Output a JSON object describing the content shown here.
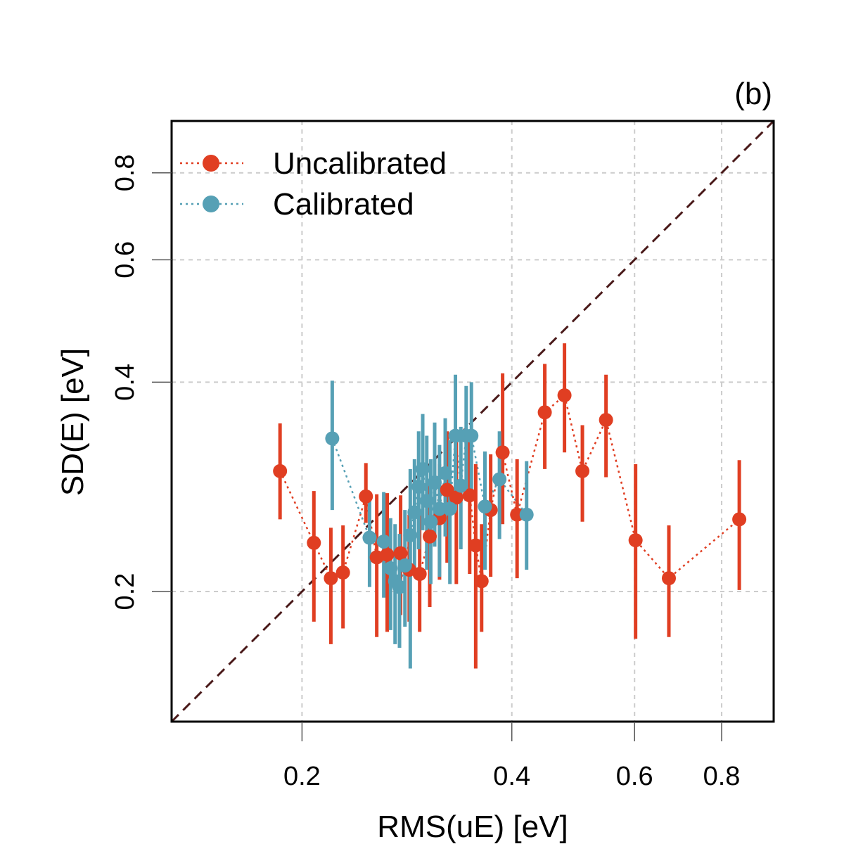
{
  "chart_data": {
    "type": "scatter",
    "panel_label": "(b)",
    "xlabel": "RMS(uE) [eV]",
    "ylabel": "SD(E) [eV]",
    "x_scale": "log",
    "y_scale": "log",
    "xlim": [
      0.13,
      0.95
    ],
    "ylim": [
      0.13,
      0.95
    ],
    "x_ticks": [
      0.2,
      0.4,
      0.6,
      0.8
    ],
    "x_tick_labels": [
      "0.2",
      "0.4",
      "0.6",
      "0.8"
    ],
    "y_ticks": [
      0.2,
      0.4,
      0.6,
      0.8
    ],
    "y_tick_labels": [
      "0.2",
      "0.4",
      "0.6",
      "0.8"
    ],
    "grid": true,
    "identity_line": true,
    "legend_position": "top-left",
    "colors": {
      "uncalibrated": "#e03e22",
      "calibrated": "#56a0b5",
      "identity": "#4a1a1a",
      "grid": "#cccccc"
    },
    "series": [
      {
        "name": "Uncalibrated",
        "points": [
          {
            "x": 0.186,
            "y": 0.298,
            "lo": 0.254,
            "hi": 0.349
          },
          {
            "x": 0.208,
            "y": 0.235,
            "lo": 0.181,
            "hi": 0.279
          },
          {
            "x": 0.22,
            "y": 0.209,
            "lo": 0.168,
            "hi": 0.247
          },
          {
            "x": 0.229,
            "y": 0.213,
            "lo": 0.177,
            "hi": 0.249
          },
          {
            "x": 0.247,
            "y": 0.274,
            "lo": 0.251,
            "hi": 0.306
          },
          {
            "x": 0.256,
            "y": 0.224,
            "lo": 0.172,
            "hi": 0.276
          },
          {
            "x": 0.265,
            "y": 0.226,
            "lo": 0.175,
            "hi": 0.277
          },
          {
            "x": 0.277,
            "y": 0.227,
            "lo": 0.185,
            "hi": 0.275
          },
          {
            "x": 0.285,
            "y": 0.215,
            "lo": 0.181,
            "hi": 0.258
          },
          {
            "x": 0.295,
            "y": 0.212,
            "lo": 0.175,
            "hi": 0.258
          },
          {
            "x": 0.305,
            "y": 0.24,
            "lo": 0.19,
            "hi": 0.29
          },
          {
            "x": 0.315,
            "y": 0.255,
            "lo": 0.208,
            "hi": 0.305
          },
          {
            "x": 0.323,
            "y": 0.28,
            "lo": 0.22,
            "hi": 0.34
          },
          {
            "x": 0.333,
            "y": 0.273,
            "lo": 0.205,
            "hi": 0.335
          },
          {
            "x": 0.348,
            "y": 0.275,
            "lo": 0.212,
            "hi": 0.34
          },
          {
            "x": 0.355,
            "y": 0.233,
            "lo": 0.155,
            "hi": 0.305
          },
          {
            "x": 0.362,
            "y": 0.207,
            "lo": 0.175,
            "hi": 0.25
          },
          {
            "x": 0.373,
            "y": 0.262,
            "lo": 0.21,
            "hi": 0.315
          },
          {
            "x": 0.388,
            "y": 0.317,
            "lo": 0.25,
            "hi": 0.412
          },
          {
            "x": 0.407,
            "y": 0.258,
            "lo": 0.209,
            "hi": 0.31
          },
          {
            "x": 0.446,
            "y": 0.362,
            "lo": 0.3,
            "hi": 0.425
          },
          {
            "x": 0.476,
            "y": 0.383,
            "lo": 0.317,
            "hi": 0.455
          },
          {
            "x": 0.505,
            "y": 0.298,
            "lo": 0.252,
            "hi": 0.347
          },
          {
            "x": 0.546,
            "y": 0.353,
            "lo": 0.292,
            "hi": 0.41
          },
          {
            "x": 0.602,
            "y": 0.237,
            "lo": 0.171,
            "hi": 0.305
          },
          {
            "x": 0.672,
            "y": 0.209,
            "lo": 0.172,
            "hi": 0.249
          },
          {
            "x": 0.848,
            "y": 0.254,
            "lo": 0.201,
            "hi": 0.309
          }
        ]
      },
      {
        "name": "Calibrated",
        "points": [
          {
            "x": 0.221,
            "y": 0.332,
            "lo": 0.262,
            "hi": 0.402
          },
          {
            "x": 0.25,
            "y": 0.239,
            "lo": 0.203,
            "hi": 0.272
          },
          {
            "x": 0.262,
            "y": 0.236,
            "lo": 0.196,
            "hi": 0.278
          },
          {
            "x": 0.268,
            "y": 0.216,
            "lo": 0.176,
            "hi": 0.255
          },
          {
            "x": 0.272,
            "y": 0.207,
            "lo": 0.168,
            "hi": 0.25
          },
          {
            "x": 0.276,
            "y": 0.203,
            "lo": 0.166,
            "hi": 0.242
          },
          {
            "x": 0.281,
            "y": 0.218,
            "lo": 0.178,
            "hi": 0.262
          },
          {
            "x": 0.286,
            "y": 0.241,
            "lo": 0.155,
            "hi": 0.3
          },
          {
            "x": 0.29,
            "y": 0.26,
            "lo": 0.215,
            "hi": 0.31
          },
          {
            "x": 0.294,
            "y": 0.283,
            "lo": 0.23,
            "hi": 0.34
          },
          {
            "x": 0.298,
            "y": 0.3,
            "lo": 0.245,
            "hi": 0.36
          },
          {
            "x": 0.302,
            "y": 0.27,
            "lo": 0.215,
            "hi": 0.335
          },
          {
            "x": 0.306,
            "y": 0.252,
            "lo": 0.205,
            "hi": 0.31
          },
          {
            "x": 0.31,
            "y": 0.287,
            "lo": 0.232,
            "hi": 0.35
          },
          {
            "x": 0.315,
            "y": 0.263,
            "lo": 0.21,
            "hi": 0.325
          },
          {
            "x": 0.321,
            "y": 0.296,
            "lo": 0.24,
            "hi": 0.355
          },
          {
            "x": 0.326,
            "y": 0.263,
            "lo": 0.205,
            "hi": 0.33
          },
          {
            "x": 0.332,
            "y": 0.335,
            "lo": 0.262,
            "hi": 0.41
          },
          {
            "x": 0.338,
            "y": 0.284,
            "lo": 0.23,
            "hi": 0.345
          },
          {
            "x": 0.344,
            "y": 0.335,
            "lo": 0.27,
            "hi": 0.395
          },
          {
            "x": 0.35,
            "y": 0.335,
            "lo": 0.272,
            "hi": 0.4
          },
          {
            "x": 0.366,
            "y": 0.265,
            "lo": 0.215,
            "hi": 0.318
          },
          {
            "x": 0.384,
            "y": 0.29,
            "lo": 0.238,
            "hi": 0.34
          },
          {
            "x": 0.42,
            "y": 0.258,
            "lo": 0.215,
            "hi": 0.308
          }
        ]
      }
    ]
  }
}
